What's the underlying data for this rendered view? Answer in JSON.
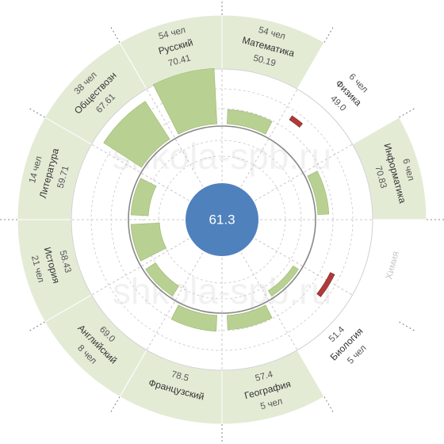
{
  "watermark": "shkola-spb.ru",
  "colors": {
    "band_fill": "#e3ebd5",
    "band_empty": "#ffffff",
    "bar_positive": "#b8d192",
    "bar_negative": "#b03a3a",
    "center": "#4f81bd",
    "line": "#aaaaaa",
    "dashed": "#666666",
    "inner_ring": "#888888"
  },
  "chart_data": {
    "type": "radial-bar",
    "title": "",
    "center_value": "61.3",
    "baseline": 61.3,
    "subjects": [
      {
        "name": "Математика",
        "count": "54 чел",
        "avg": "50.19",
        "avg_value": 50.19,
        "has_data": true,
        "bar": "Математика"
      },
      {
        "name": "Физика",
        "count": "6 чел",
        "avg": "49.0",
        "avg_value": 49.0,
        "has_data": false,
        "bar": "Физика"
      },
      {
        "name": "Информатика",
        "count": "6 чел",
        "avg": "70.83",
        "avg_value": 70.83,
        "has_data": true,
        "bar": "Информатика"
      },
      {
        "name": "Химия",
        "count": "",
        "avg": "",
        "avg_value": null,
        "has_data": false,
        "bar": "Химия"
      },
      {
        "name": "Биология",
        "count": "5 чел",
        "avg": "51.4",
        "avg_value": 51.4,
        "has_data": false,
        "bar": "Биология"
      },
      {
        "name": "География",
        "count": "5 чел",
        "avg": "57.4",
        "avg_value": 57.4,
        "has_data": true,
        "bar": "География"
      },
      {
        "name": "Французский",
        "count": "",
        "avg": "78.5",
        "avg_value": 78.5,
        "has_data": true,
        "bar": "Французский"
      },
      {
        "name": "Английский",
        "count": "8 чел",
        "avg": "69.0",
        "avg_value": 69.0,
        "has_data": true,
        "bar": "Английский"
      },
      {
        "name": "История",
        "count": "21 чел",
        "avg": "58.43",
        "avg_value": 58.43,
        "has_data": true,
        "bar": "История"
      },
      {
        "name": "Литература",
        "count": "14 чел",
        "avg": "59.71",
        "avg_value": 59.71,
        "has_data": true,
        "bar": "Литература"
      },
      {
        "name": "Обществозн",
        "count": "38 чел",
        "avg": "67.61",
        "avg_value": 67.61,
        "has_data": true,
        "bar": "Обществозн"
      },
      {
        "name": "Русский",
        "count": "54 чел",
        "avg": "70.41",
        "avg_value": 70.41,
        "has_data": true,
        "bar": "Русский"
      }
    ],
    "bars": [
      {
        "subject": "Математика",
        "direction": "outward",
        "length": 18
      },
      {
        "subject": "Физика",
        "direction": "outward",
        "length": 0
      },
      {
        "subject": "Информатика",
        "direction": "outward",
        "length": 14
      },
      {
        "subject": "Химия",
        "direction": "outward",
        "length": 0
      },
      {
        "subject": "Биология",
        "direction": "inward",
        "length": 8
      },
      {
        "subject": "География",
        "direction": "outward",
        "length": 18
      },
      {
        "subject": "Французский",
        "direction": "outward",
        "length": 20
      },
      {
        "subject": "Английский",
        "direction": "inward",
        "length": 15
      },
      {
        "subject": "История",
        "direction": "inward",
        "length": 36
      },
      {
        "subject": "Литература",
        "direction": "inward",
        "length": 22
      },
      {
        "subject": "Обществозн",
        "direction": "outward",
        "length": 57
      },
      {
        "subject": "Русский",
        "direction": "outward",
        "length": 70
      }
    ]
  }
}
